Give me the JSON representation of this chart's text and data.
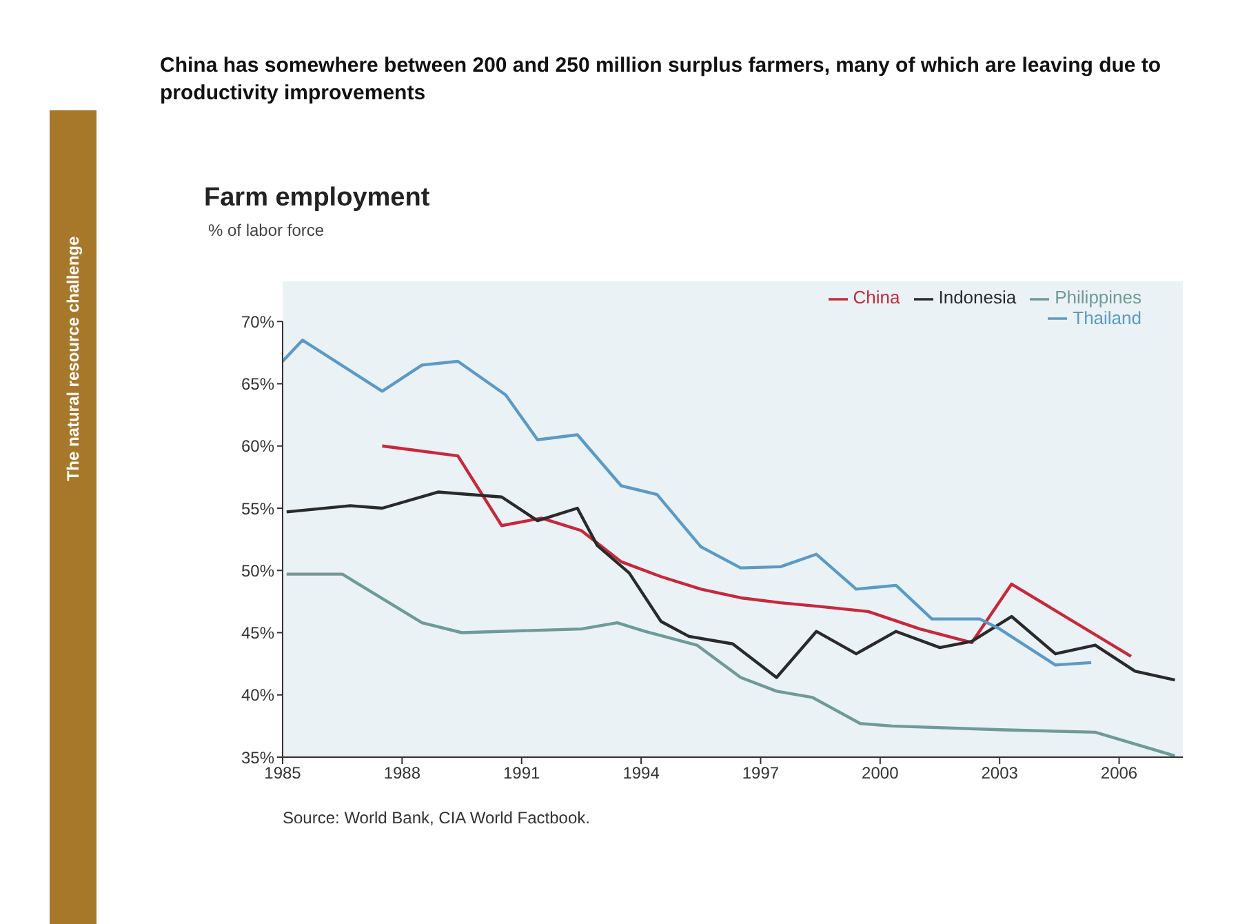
{
  "chart_data": {
    "type": "line",
    "title": "China has somewhere between 200 and 250 million surplus farmers, many of which are leaving due to productivity improvements",
    "subtitle": "Farm employment",
    "ylabel": "% of labor force",
    "annotations": [
      "Source: World Bank, CIA World Factbook.",
      "The natural resource challenge"
    ],
    "xlim": [
      1985,
      2007.6
    ],
    "xticks": [
      1985,
      1988,
      1991,
      1994,
      1997,
      2000,
      2003,
      2006
    ],
    "ylim": [
      35,
      70
    ],
    "yticks": [
      {
        "value": 35,
        "label": "35%"
      },
      {
        "value": 40,
        "label": "40%"
      },
      {
        "value": 45,
        "label": "45%"
      },
      {
        "value": 50,
        "label": "50%"
      },
      {
        "value": 55,
        "label": "55%"
      },
      {
        "value": 60,
        "label": "60%"
      },
      {
        "value": 65,
        "label": "65%"
      },
      {
        "value": 70,
        "label": "70%"
      }
    ],
    "grid": false,
    "legend": "top right",
    "marker": "none",
    "line_style": "solid",
    "series": [
      {
        "name": "China",
        "color": "#c8283c",
        "x": [
          1987.5,
          1989.4,
          1990.5,
          1991.5,
          1992.5,
          1993.5,
          1994.5,
          1995.5,
          1996.5,
          1997.5,
          1998.5,
          1999.7,
          2001.0,
          2002.3,
          2003.3,
          2006.3
        ],
        "values": [
          60.0,
          59.2,
          53.6,
          54.2,
          53.2,
          50.7,
          49.5,
          48.5,
          47.8,
          47.4,
          47.1,
          46.7,
          45.3,
          44.2,
          48.9,
          43.1
        ]
      },
      {
        "name": "Indonesia",
        "color": "#2a2a2a",
        "x": [
          1985.1,
          1986.7,
          1987.5,
          1988.9,
          1990.5,
          1991.4,
          1992.4,
          1992.9,
          1993.7,
          1994.5,
          1995.2,
          1996.3,
          1997.4,
          1998.4,
          1999.4,
          2000.4,
          2001.5,
          2002.3,
          2003.3,
          2004.4,
          2005.4,
          2006.4,
          2007.4
        ],
        "values": [
          54.7,
          55.2,
          55.0,
          56.3,
          55.9,
          54.0,
          55.0,
          52.0,
          49.8,
          45.9,
          44.7,
          44.1,
          41.4,
          45.1,
          43.3,
          45.1,
          43.8,
          44.3,
          46.3,
          43.3,
          44.0,
          41.9,
          41.2
        ]
      },
      {
        "name": "Thailand",
        "color": "#5b9ac8",
        "x": [
          1985.0,
          1985.5,
          1987.5,
          1988.5,
          1989.4,
          1990.6,
          1991.4,
          1992.4,
          1993.5,
          1994.4,
          1995.5,
          1996.5,
          1997.5,
          1998.4,
          1999.4,
          2000.4,
          2001.3,
          2002.5,
          2003.0,
          2004.4,
          2005.3
        ],
        "values": [
          66.8,
          68.5,
          64.4,
          66.5,
          66.8,
          64.1,
          60.5,
          60.9,
          56.8,
          56.1,
          51.9,
          50.2,
          50.3,
          51.3,
          48.5,
          48.8,
          46.1,
          46.1,
          45.3,
          42.4,
          42.6
        ]
      },
      {
        "name": "Philippines",
        "color": "#6f9a98",
        "x": [
          1985.1,
          1986.5,
          1988.5,
          1989.5,
          1992.5,
          1993.4,
          1994.1,
          1995.4,
          1996.5,
          1997.4,
          1998.3,
          1999.5,
          2000.3,
          2003.0,
          2005.4,
          2007.4
        ],
        "values": [
          49.7,
          49.7,
          45.8,
          45.0,
          45.3,
          45.8,
          45.1,
          44.0,
          41.4,
          40.3,
          39.8,
          37.7,
          37.5,
          37.2,
          37.0,
          35.1
        ]
      }
    ]
  }
}
